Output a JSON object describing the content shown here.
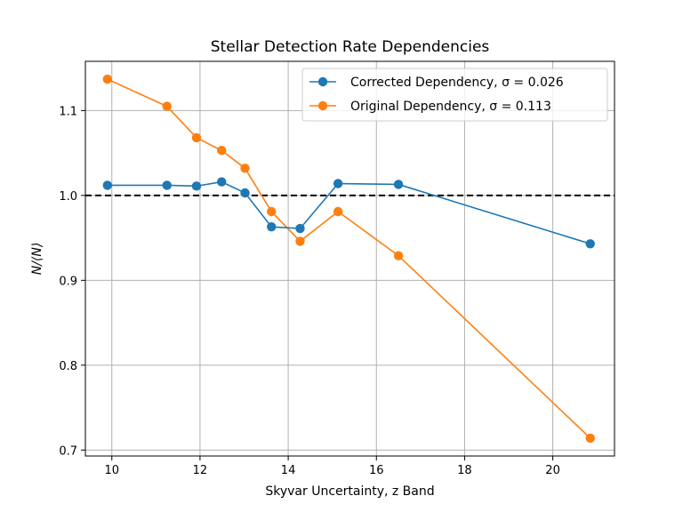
{
  "chart_data": {
    "type": "line",
    "title": "Stellar Detection Rate Dependencies",
    "xlabel": "Skyvar Uncertainty, z Band",
    "ylabel": "N/⟨N⟩",
    "xlim": [
      9.4,
      21.4
    ],
    "ylim": [
      0.693,
      1.158
    ],
    "xticks": [
      10,
      12,
      14,
      16,
      18,
      20
    ],
    "yticks": [
      0.7,
      0.8,
      0.9,
      1.0,
      1.1
    ],
    "xtick_labels": [
      "10",
      "12",
      "14",
      "16",
      "18",
      "20"
    ],
    "ytick_labels": [
      "0.7",
      "0.8",
      "0.9",
      "1.0",
      "1.1"
    ],
    "grid": true,
    "legend_position": "top-right",
    "reference_line": {
      "y": 1.0,
      "style": "dashed",
      "color": "#000000"
    },
    "series": [
      {
        "name": "Corrected Dependency, σ = 0.026",
        "name_prefix": "Corrected Dependency, ",
        "sigma_text": "σ = 0.026",
        "color": "#1f77b4",
        "x": [
          9.9,
          11.25,
          11.92,
          12.49,
          13.02,
          13.62,
          14.27,
          15.13,
          16.5,
          20.85
        ],
        "values": [
          1.012,
          1.012,
          1.011,
          1.016,
          1.003,
          0.963,
          0.961,
          1.014,
          1.013,
          0.943
        ]
      },
      {
        "name": "Original Dependency, σ = 0.113",
        "name_prefix": "Original Dependency, ",
        "sigma_text": "σ = 0.113",
        "color": "#ff7f0e",
        "x": [
          9.9,
          11.25,
          11.92,
          12.49,
          13.02,
          13.62,
          14.27,
          15.13,
          16.5,
          20.85
        ],
        "values": [
          1.137,
          1.105,
          1.068,
          1.053,
          1.032,
          0.981,
          0.946,
          0.981,
          0.929,
          0.714
        ]
      }
    ]
  }
}
